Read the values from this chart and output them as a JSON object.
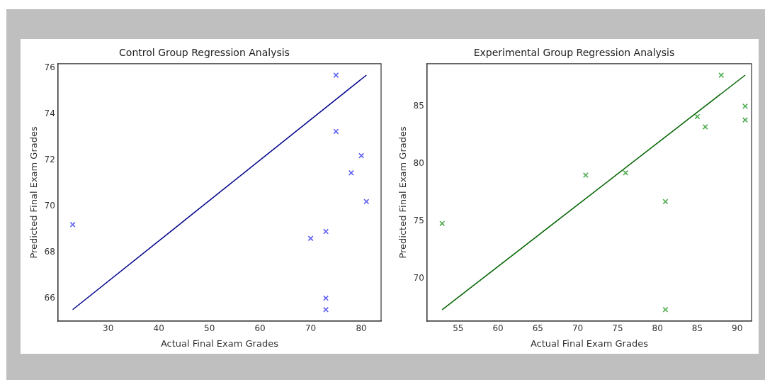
{
  "chart_data": [
    {
      "type": "scatter",
      "title": "Control Group Regression Analysis",
      "xlabel": "Actual Final Exam Grades",
      "ylabel": "Predicted Final Exam Grades",
      "grid": false,
      "legend": false,
      "xlim": [
        20.1,
        83.9
      ],
      "ylim": [
        65.0,
        76.2
      ],
      "xticks": [
        30,
        40,
        50,
        60,
        70,
        80
      ],
      "yticks": [
        66,
        68,
        70,
        72,
        74,
        76
      ],
      "series": [
        {
          "marker": "cross",
          "color": "#5c5cf5",
          "x": [
            23,
            70,
            73,
            73,
            73,
            75,
            75,
            78,
            80,
            81
          ],
          "values": [
            69.2,
            68.6,
            68.9,
            66.0,
            65.5,
            75.7,
            73.25,
            71.45,
            72.2,
            70.2
          ]
        },
        {
          "type": "line",
          "color": "#00008b",
          "x": [
            23,
            81
          ],
          "values": [
            65.5,
            75.7
          ]
        }
      ]
    },
    {
      "type": "scatter",
      "title": "Experimental Group Regression Analysis",
      "xlabel": "Actual Final Exam Grades",
      "ylabel": "Predicted Final Exam Grades",
      "grid": false,
      "legend": false,
      "xlim": [
        51.1,
        91.8
      ],
      "ylim": [
        66.3,
        88.7
      ],
      "xticks": [
        55,
        60,
        65,
        70,
        75,
        80,
        85,
        90
      ],
      "yticks": [
        70,
        75,
        80,
        85
      ],
      "series": [
        {
          "marker": "cross",
          "color": "#4caa4c",
          "x": [
            53,
            71,
            76,
            81,
            81,
            85,
            86,
            88,
            91,
            91
          ],
          "values": [
            74.8,
            79.0,
            79.2,
            76.7,
            67.3,
            84.1,
            83.2,
            87.7,
            85.0,
            83.8
          ]
        },
        {
          "type": "line",
          "color": "#006400",
          "x": [
            53,
            91
          ],
          "values": [
            67.3,
            87.7
          ]
        }
      ]
    }
  ]
}
